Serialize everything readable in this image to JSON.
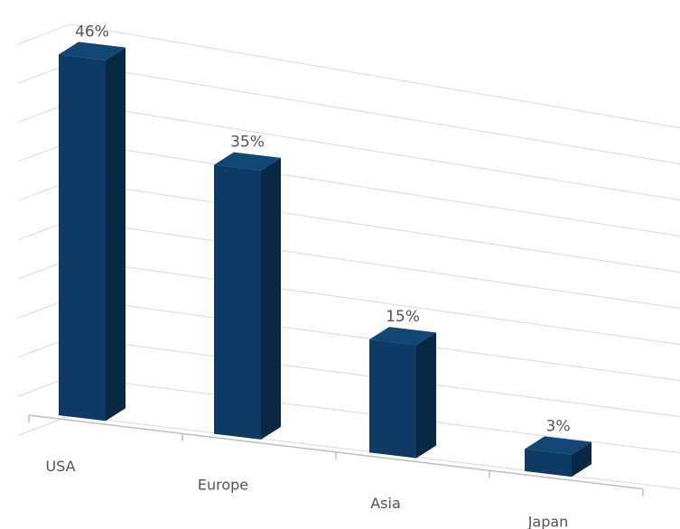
{
  "chart_data": {
    "type": "bar",
    "categories": [
      "USA",
      "Europe",
      "Asia",
      "Japan"
    ],
    "values": [
      46,
      35,
      15,
      3
    ],
    "data_labels": [
      "46%",
      "35%",
      "15%",
      "3%"
    ],
    "ylim": [
      0,
      50
    ],
    "grid": true,
    "legend": "none",
    "style": "3d-perspective",
    "colors": {
      "bar_front": "#0e3a66",
      "bar_side": "#082845",
      "bar_top": "#114774",
      "grid": "#d9d9d9",
      "axis": "#bfbfbf",
      "text": "#555555"
    }
  }
}
